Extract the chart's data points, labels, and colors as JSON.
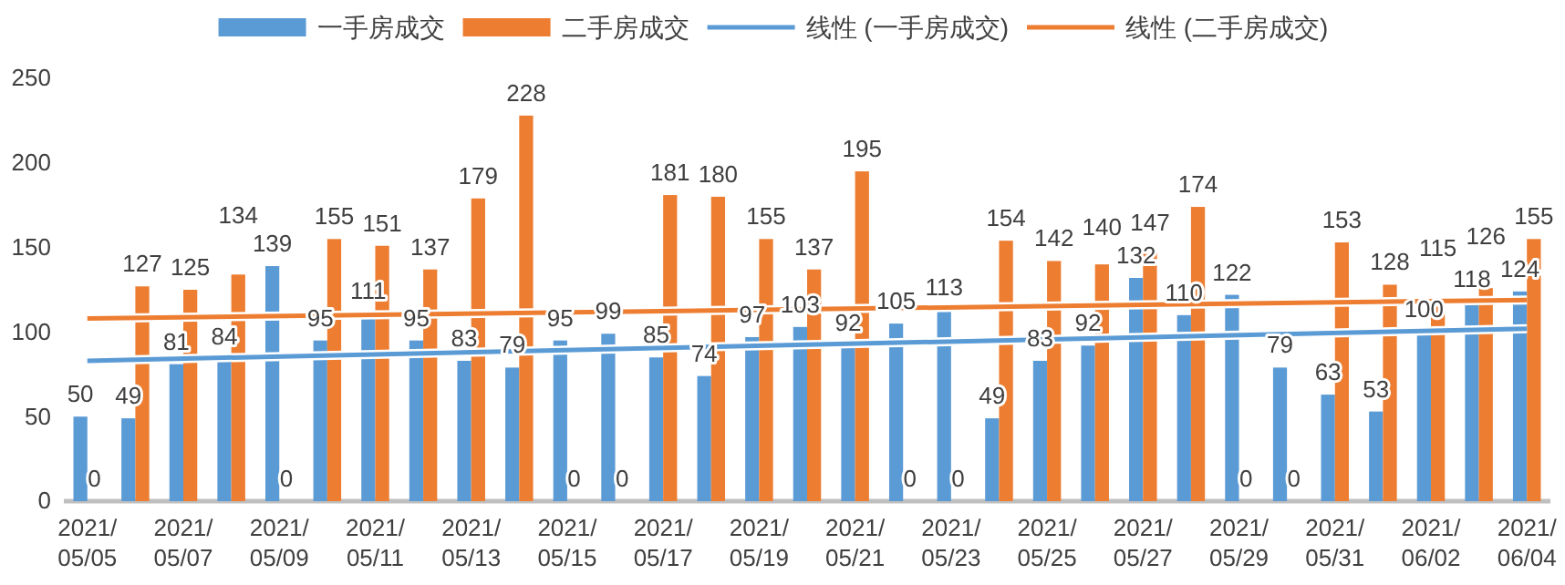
{
  "chart_data": {
    "type": "bar",
    "categories": [
      "2021/05/05",
      null,
      "2021/05/07",
      null,
      "2021/05/09",
      null,
      "2021/05/11",
      null,
      "2021/05/13",
      null,
      "2021/05/15",
      null,
      "2021/05/17",
      null,
      "2021/05/19",
      null,
      "2021/05/21",
      null,
      "2021/05/23",
      null,
      "2021/05/25",
      null,
      "2021/05/27",
      null,
      "2021/05/29",
      null,
      "2021/05/31",
      null,
      "2021/06/02",
      null,
      "2021/06/04"
    ],
    "series": [
      {
        "name": "一手房成交",
        "color": "#5b9bd5",
        "values": [
          50,
          49,
          81,
          84,
          139,
          95,
          111,
          95,
          83,
          79,
          95,
          99,
          85,
          74,
          97,
          103,
          92,
          105,
          113,
          49,
          83,
          92,
          132,
          110,
          122,
          79,
          63,
          53,
          100,
          118,
          124
        ],
        "value_labels": [
          "50",
          "49",
          "81",
          "84",
          "139",
          "95",
          "111",
          "95",
          "83",
          "79",
          "95",
          "99",
          "85",
          "74",
          "97",
          "103",
          "92",
          "105",
          "113",
          "49",
          "83",
          "92",
          "132",
          "110",
          "122",
          "79",
          "63",
          "53",
          "100",
          "118",
          "124"
        ]
      },
      {
        "name": "二手房成交",
        "color": "#ed7d31",
        "values": [
          0,
          127,
          125,
          134,
          0,
          155,
          151,
          137,
          179,
          228,
          0,
          0,
          181,
          180,
          155,
          137,
          195,
          0,
          0,
          154,
          142,
          140,
          147,
          174,
          0,
          0,
          153,
          128,
          115,
          126,
          155
        ],
        "value_labels": [
          "0",
          "127",
          "125",
          "134",
          "0",
          "155",
          "151",
          "137",
          "179",
          "228",
          "0",
          "0",
          "181",
          "180",
          "155",
          "137",
          "195",
          "0",
          "0",
          "154",
          "142",
          "140",
          "147",
          "174",
          "0",
          "0",
          "153",
          "128",
          "115",
          "126",
          "155"
        ]
      },
      {
        "name": "线性 (一手房成交)",
        "type": "line",
        "color": "#5b9bd5",
        "x": [
          "2021/05/05",
          "2021/06/04"
        ],
        "values": [
          83,
          102
        ]
      },
      {
        "name": "线性 (二手房成交)",
        "type": "line",
        "color": "#ed7d31",
        "x": [
          "2021/05/05",
          "2021/06/04"
        ],
        "values": [
          108,
          119
        ]
      }
    ],
    "ylim": [
      0,
      250
    ],
    "yticks": [
      0,
      50,
      100,
      150,
      200,
      250
    ],
    "legend": "top",
    "grid": false
  }
}
